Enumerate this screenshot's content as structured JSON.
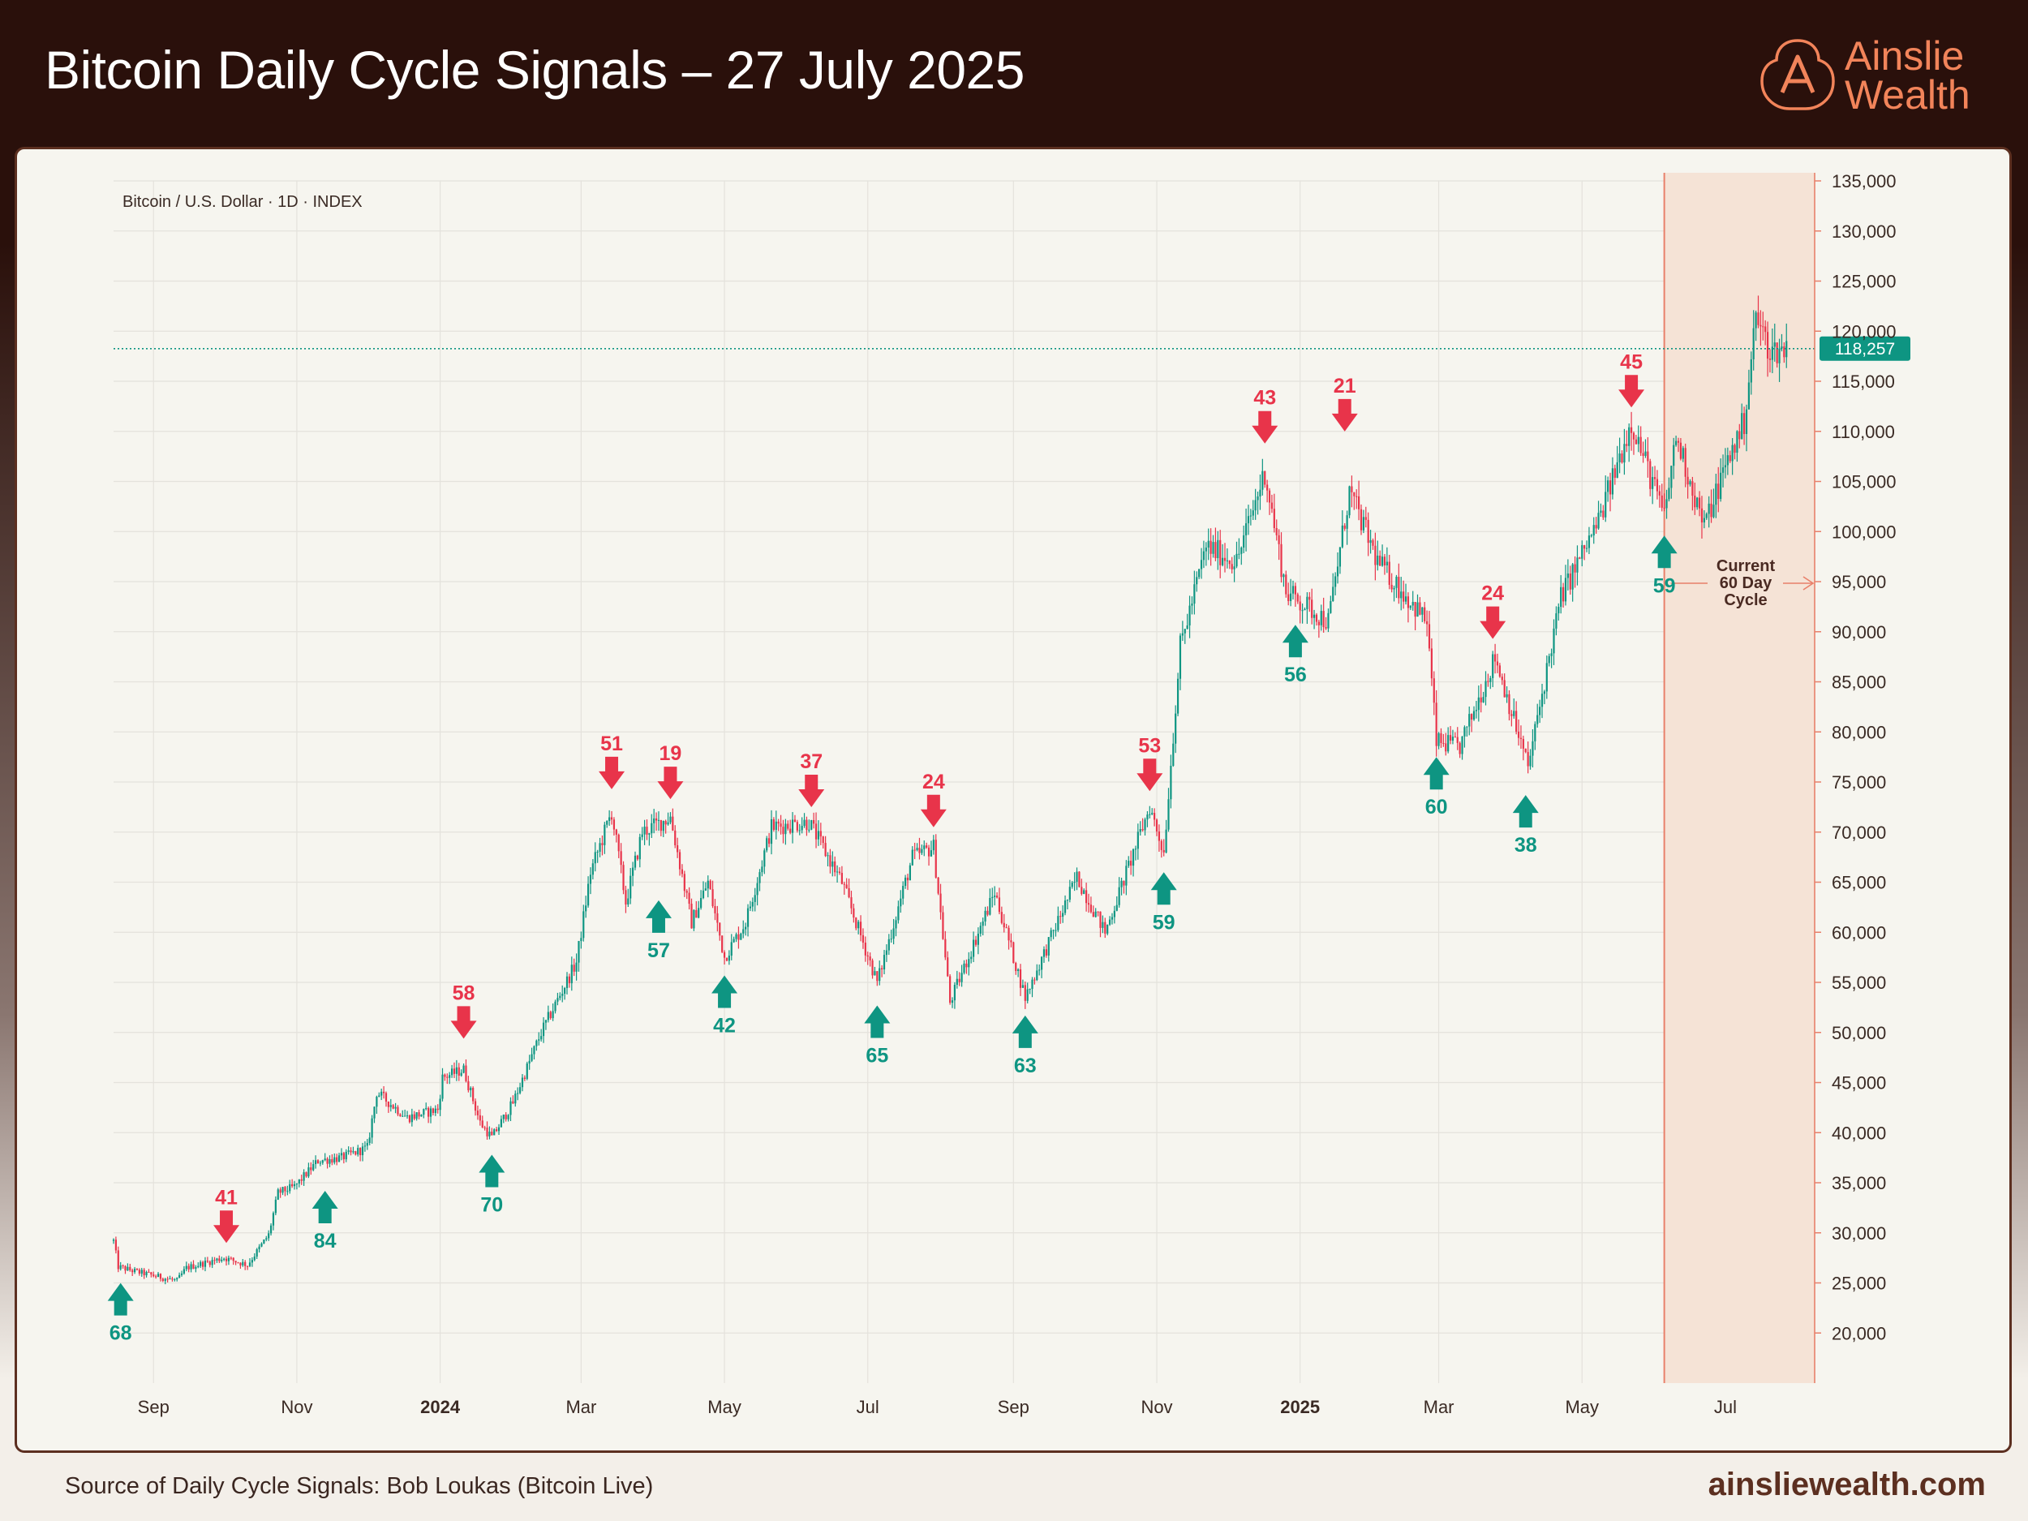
{
  "header": {
    "title": "Bitcoin Daily Cycle Signals – 27 July 2025",
    "logo_line1": "Ainslie",
    "logo_line2": "Wealth",
    "logo_icon": "ainslie-a-icon"
  },
  "footer": {
    "source": "Source of Daily Cycle Signals: Bob Loukas (Bitcoin Live)",
    "site": "ainsliewealth.com"
  },
  "colors": {
    "header_bg": "#2a100b",
    "brand_orange": "#f2845a",
    "up": "#0e9582",
    "down": "#e8344a",
    "current_cycle_fill": "#f5e3d6",
    "current_cycle_line": "#e8806a"
  },
  "chart_data": {
    "type": "candlestick",
    "title": "Bitcoin Daily Cycle Signals – 27 July 2025",
    "symbol_label": "Bitcoin / U.S. Dollar · 1D · INDEX",
    "x_range": [
      "2023-08-15",
      "2025-08-08"
    ],
    "x_tick_labels": [
      {
        "label": "Sep",
        "date": "2023-09-01",
        "bold": false
      },
      {
        "label": "Nov",
        "date": "2023-11-01",
        "bold": false
      },
      {
        "label": "2024",
        "date": "2024-01-01",
        "bold": true
      },
      {
        "label": "Mar",
        "date": "2024-03-01",
        "bold": false
      },
      {
        "label": "May",
        "date": "2024-05-01",
        "bold": false
      },
      {
        "label": "Jul",
        "date": "2024-07-01",
        "bold": false
      },
      {
        "label": "Sep",
        "date": "2024-09-01",
        "bold": false
      },
      {
        "label": "Nov",
        "date": "2024-11-01",
        "bold": false
      },
      {
        "label": "2025",
        "date": "2025-01-01",
        "bold": true
      },
      {
        "label": "Mar",
        "date": "2025-03-01",
        "bold": false
      },
      {
        "label": "May",
        "date": "2025-05-01",
        "bold": false
      },
      {
        "label": "Jul",
        "date": "2025-07-01",
        "bold": false
      }
    ],
    "y_range": [
      15000,
      135000
    ],
    "y_tick_labels": [
      "20,000",
      "25,000",
      "30,000",
      "35,000",
      "40,000",
      "45,000",
      "50,000",
      "55,000",
      "60,000",
      "65,000",
      "70,000",
      "75,000",
      "80,000",
      "85,000",
      "90,000",
      "95,000",
      "100,000",
      "105,000",
      "110,000",
      "115,000",
      "120,000",
      "125,000",
      "130,000",
      "135,000"
    ],
    "current_price": 118257,
    "current_price_label": "118,257",
    "price_path": [
      [
        "2023-08-15",
        29200
      ],
      [
        "2023-08-17",
        26600
      ],
      [
        "2023-08-25",
        26100
      ],
      [
        "2023-09-11",
        25200
      ],
      [
        "2023-09-15",
        26500
      ],
      [
        "2023-10-01",
        27500
      ],
      [
        "2023-10-11",
        26800
      ],
      [
        "2023-10-20",
        29800
      ],
      [
        "2023-10-24",
        34000
      ],
      [
        "2023-10-31",
        34600
      ],
      [
        "2023-11-10",
        37200
      ],
      [
        "2023-11-20",
        37500
      ],
      [
        "2023-12-01",
        38500
      ],
      [
        "2023-12-05",
        44000
      ],
      [
        "2023-12-18",
        41500
      ],
      [
        "2023-12-31",
        42300
      ],
      [
        "2024-01-02",
        45500
      ],
      [
        "2024-01-11",
        46300
      ],
      [
        "2024-01-18",
        41000
      ],
      [
        "2024-01-23",
        39500
      ],
      [
        "2024-02-01",
        43000
      ],
      [
        "2024-02-13",
        50000
      ],
      [
        "2024-02-28",
        57000
      ],
      [
        "2024-03-05",
        66000
      ],
      [
        "2024-03-14",
        72000
      ],
      [
        "2024-03-20",
        63000
      ],
      [
        "2024-03-27",
        70000
      ],
      [
        "2024-04-08",
        71500
      ],
      [
        "2024-04-17",
        61000
      ],
      [
        "2024-04-24",
        65000
      ],
      [
        "2024-05-01",
        57500
      ],
      [
        "2024-05-10",
        61000
      ],
      [
        "2024-05-21",
        70500
      ],
      [
        "2024-06-06",
        71000
      ],
      [
        "2024-06-20",
        65000
      ],
      [
        "2024-07-05",
        55000
      ],
      [
        "2024-07-20",
        67500
      ],
      [
        "2024-07-29",
        68500
      ],
      [
        "2024-08-05",
        53000
      ],
      [
        "2024-08-24",
        64000
      ],
      [
        "2024-09-06",
        53500
      ],
      [
        "2024-09-28",
        65500
      ],
      [
        "2024-10-10",
        60000
      ],
      [
        "2024-10-29",
        72500
      ],
      [
        "2024-11-04",
        68000
      ],
      [
        "2024-11-11",
        88500
      ],
      [
        "2024-11-22",
        98500
      ],
      [
        "2024-12-05",
        97000
      ],
      [
        "2024-12-17",
        106000
      ],
      [
        "2024-12-26",
        94000
      ],
      [
        "2025-01-13",
        91000
      ],
      [
        "2025-01-22",
        104000
      ],
      [
        "2025-02-03",
        97000
      ],
      [
        "2025-02-24",
        91000
      ],
      [
        "2025-02-28",
        79000
      ],
      [
        "2025-03-10",
        78500
      ],
      [
        "2025-03-25",
        87500
      ],
      [
        "2025-04-08",
        76500
      ],
      [
        "2025-04-22",
        93500
      ],
      [
        "2025-05-08",
        101000
      ],
      [
        "2025-05-22",
        111000
      ],
      [
        "2025-06-05",
        101500
      ],
      [
        "2025-06-10",
        109500
      ],
      [
        "2025-06-22",
        100500
      ],
      [
        "2025-07-01",
        106500
      ],
      [
        "2025-07-09",
        111000
      ],
      [
        "2025-07-14",
        121500
      ],
      [
        "2025-07-20",
        118000
      ],
      [
        "2025-07-27",
        118257
      ]
    ],
    "signals": [
      {
        "type": "low",
        "date": "2023-08-18",
        "price": 25800,
        "label": "68"
      },
      {
        "type": "high",
        "date": "2023-10-02",
        "price": 28500,
        "label": "41"
      },
      {
        "type": "low",
        "date": "2023-11-13",
        "price": 35000,
        "label": "84"
      },
      {
        "type": "high",
        "date": "2024-01-11",
        "price": 48900,
        "label": "58"
      },
      {
        "type": "low",
        "date": "2024-01-23",
        "price": 38600,
        "label": "70"
      },
      {
        "type": "high",
        "date": "2024-03-14",
        "price": 73800,
        "label": "51"
      },
      {
        "type": "low",
        "date": "2024-04-03",
        "price": 64000,
        "label": "57"
      },
      {
        "type": "high",
        "date": "2024-04-08",
        "price": 72800,
        "label": "19"
      },
      {
        "type": "low",
        "date": "2024-05-01",
        "price": 56500,
        "label": "42"
      },
      {
        "type": "high",
        "date": "2024-06-07",
        "price": 72000,
        "label": "37"
      },
      {
        "type": "low",
        "date": "2024-07-05",
        "price": 53500,
        "label": "65"
      },
      {
        "type": "high",
        "date": "2024-07-29",
        "price": 70000,
        "label": "24"
      },
      {
        "type": "low",
        "date": "2024-09-06",
        "price": 52500,
        "label": "63"
      },
      {
        "type": "high",
        "date": "2024-10-29",
        "price": 73600,
        "label": "53"
      },
      {
        "type": "low",
        "date": "2024-11-04",
        "price": 66800,
        "label": "59"
      },
      {
        "type": "high",
        "date": "2024-12-17",
        "price": 108300,
        "label": "43"
      },
      {
        "type": "low",
        "date": "2024-12-30",
        "price": 91500,
        "label": "56"
      },
      {
        "type": "high",
        "date": "2025-01-20",
        "price": 109500,
        "label": "21"
      },
      {
        "type": "low",
        "date": "2025-02-28",
        "price": 78300,
        "label": "60"
      },
      {
        "type": "high",
        "date": "2025-03-24",
        "price": 88800,
        "label": "24"
      },
      {
        "type": "low",
        "date": "2025-04-07",
        "price": 74500,
        "label": "38"
      },
      {
        "type": "high",
        "date": "2025-05-22",
        "price": 111900,
        "label": "45"
      },
      {
        "type": "low",
        "date": "2025-06-05",
        "price": 100400,
        "label": "59"
      }
    ],
    "current_cycle": {
      "start": "2025-06-05",
      "end": "2025-08-08",
      "label_lines": [
        "Current",
        "60 Day",
        "Cycle"
      ]
    }
  }
}
